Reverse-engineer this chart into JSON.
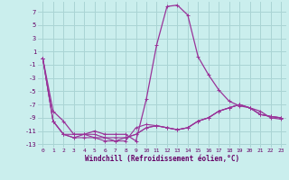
{
  "xlabel": "Windchill (Refroidissement éolien,°C)",
  "background_color": "#caeeed",
  "grid_color": "#aad4d4",
  "line_color": "#993399",
  "xlim": [
    -0.5,
    23.5
  ],
  "ylim": [
    -13.5,
    8.5
  ],
  "xticks": [
    0,
    1,
    2,
    3,
    4,
    5,
    6,
    7,
    8,
    9,
    10,
    11,
    12,
    13,
    14,
    15,
    16,
    17,
    18,
    19,
    20,
    21,
    22,
    23
  ],
  "yticks": [
    -13,
    -11,
    -9,
    -7,
    -5,
    -3,
    -1,
    1,
    3,
    5,
    7
  ],
  "series": [
    [
      0,
      -8.0,
      -9.5,
      -11.5,
      -11.5,
      -11.0,
      -11.5,
      -11.5,
      -11.5,
      -12.5,
      -6.2,
      2.0,
      7.8,
      8.0,
      6.5,
      0.2,
      -2.5,
      -4.8,
      -6.5,
      -7.2,
      -7.5,
      -8.0,
      -9.0,
      -9.2
    ],
    [
      0,
      -9.5,
      -11.5,
      -12.0,
      -12.0,
      -12.0,
      -12.5,
      -12.5,
      -12.5,
      -10.5,
      -10.0,
      -10.2,
      -10.5,
      -10.8,
      -10.5,
      -9.5,
      -9.0,
      -8.0,
      -7.5,
      -7.0,
      -7.5,
      -8.5,
      -8.8,
      -9.0
    ],
    [
      0,
      -9.5,
      -11.5,
      -12.0,
      -11.5,
      -11.5,
      -12.0,
      -12.0,
      -12.0,
      -11.5,
      -10.5,
      -10.2,
      -10.5,
      -10.8,
      -10.5,
      -9.5,
      -9.0,
      -8.0,
      -7.5,
      -7.0,
      -7.5,
      -8.5,
      -8.8,
      -9.0
    ],
    [
      0,
      -9.5,
      -11.5,
      -11.5,
      -11.5,
      -12.0,
      -12.0,
      -12.5,
      -12.0,
      -11.5,
      -10.5,
      -10.2,
      -10.5,
      -10.8,
      -10.5,
      -9.5,
      -9.0,
      -8.0,
      -7.5,
      -7.0,
      -7.5,
      -8.5,
      -8.8,
      -9.0
    ]
  ],
  "x": [
    0,
    1,
    2,
    3,
    4,
    5,
    6,
    7,
    8,
    9,
    10,
    11,
    12,
    13,
    14,
    15,
    16,
    17,
    18,
    19,
    20,
    21,
    22,
    23
  ]
}
